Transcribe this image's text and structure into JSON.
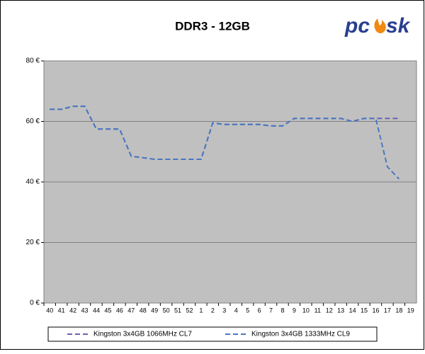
{
  "logo": {
    "left": "pc",
    "right": "sk"
  },
  "chart_data": {
    "type": "line",
    "title": "DDR3 - 12GB",
    "categories": [
      "40",
      "41",
      "42",
      "43",
      "44",
      "45",
      "46",
      "47",
      "48",
      "49",
      "50",
      "51",
      "52",
      "1",
      "2",
      "3",
      "4",
      "5",
      "6",
      "7",
      "8",
      "9",
      "10",
      "11",
      "12",
      "13",
      "14",
      "15",
      "16",
      "17",
      "18",
      "19"
    ],
    "series": [
      {
        "name": "Kingston 3x4GB 1066MHz CL7",
        "color": "#6a63b0",
        "values": [
          64,
          64,
          65,
          65,
          57.5,
          57.5,
          57.5,
          48.5,
          48,
          47.5,
          47.5,
          47.5,
          47.5,
          47.5,
          59.5,
          59,
          59,
          59,
          59,
          58.5,
          58.5,
          61,
          61,
          61,
          61,
          61,
          60,
          61,
          61,
          61,
          61,
          null
        ]
      },
      {
        "name": "Kingston 3x4GB 1333MHz CL9",
        "color": "#4a78c0",
        "values": [
          64,
          64,
          65,
          65,
          57.5,
          57.5,
          57.5,
          48.5,
          48,
          47.5,
          47.5,
          47.5,
          47.5,
          47.5,
          59.5,
          59,
          59,
          59,
          59,
          58.5,
          58.5,
          61,
          61,
          61,
          61,
          61,
          60,
          61,
          61,
          45,
          41,
          null
        ]
      }
    ],
    "ylim": [
      0,
      80
    ],
    "yticks": [
      {
        "value": 0,
        "label": "0 €"
      },
      {
        "value": 20,
        "label": "20 €"
      },
      {
        "value": 40,
        "label": "40 €"
      },
      {
        "value": 60,
        "label": "60 €"
      },
      {
        "value": 80,
        "label": "80 €"
      }
    ],
    "grid": true
  }
}
